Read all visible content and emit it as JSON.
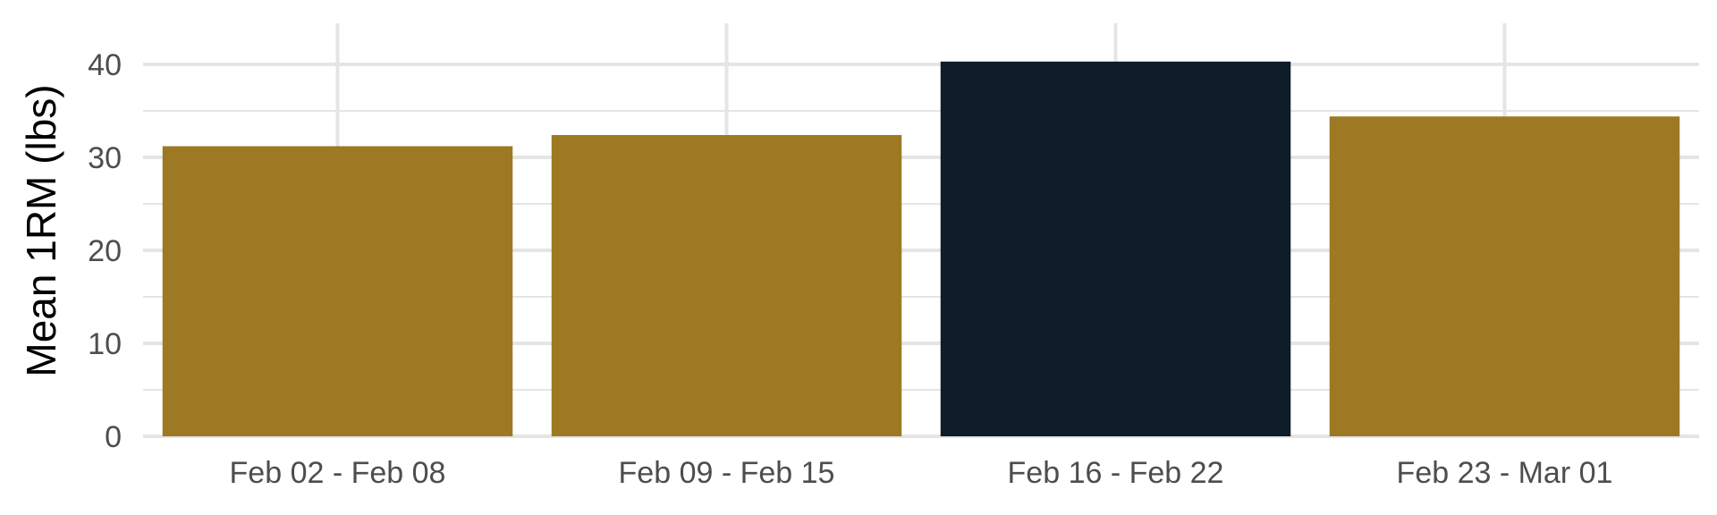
{
  "chart_data": {
    "type": "bar",
    "categories": [
      "Feb 02 - Feb 08",
      "Feb 09 - Feb 15",
      "Feb 16 - Feb 22",
      "Feb 23 - Mar 01"
    ],
    "values": [
      31.2,
      32.4,
      40.3,
      34.4
    ],
    "highlight_index": 2,
    "title": "",
    "xlabel": "",
    "ylabel": "Mean 1RM (lbs)",
    "ylim": [
      0,
      42
    ],
    "yticks": [
      0,
      10,
      20,
      30,
      40
    ],
    "ytick_labels": [
      "0",
      "10",
      "20",
      "30",
      "40"
    ],
    "grid": true,
    "legend": "none",
    "colors": {
      "bar": "#9c7922",
      "highlight": "#0f1d2a",
      "grid": "#e5e5e5",
      "background": "#ffffff"
    }
  }
}
